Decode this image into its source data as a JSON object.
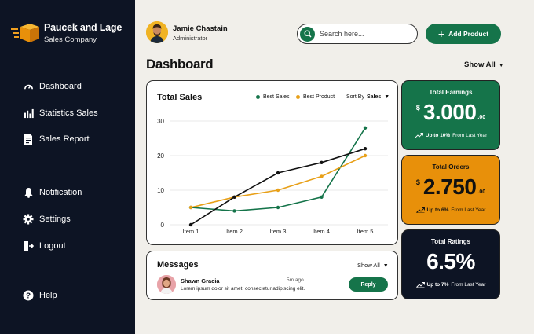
{
  "brand": {
    "name": "Paucek and Lage",
    "subtitle": "Sales Company"
  },
  "nav": {
    "dashboard": "Dashboard",
    "statistics": "Statistics Sales",
    "report": "Sales Report",
    "notification": "Notification",
    "settings": "Settings",
    "logout": "Logout",
    "help": "Help"
  },
  "user": {
    "name": "Jamie Chastain",
    "role": "Administrator"
  },
  "search": {
    "placeholder": "Search here..."
  },
  "add_button": "Add Product",
  "page_title": "Dashboard",
  "show_all": "Show All",
  "chart_card": {
    "title": "Total Sales",
    "sort_label": "Sort By",
    "sort_value": "Sales"
  },
  "chart_data": {
    "type": "line",
    "categories": [
      "Item 1",
      "Item 2",
      "Item 3",
      "Item 4",
      "Item 5"
    ],
    "ylim": [
      0,
      30
    ],
    "yticks": [
      0,
      10,
      20,
      30
    ],
    "grid": true,
    "legend_position": "top-right",
    "series": [
      {
        "name": "Best Sales",
        "color": "#15744a",
        "values": [
          5,
          4,
          5,
          8,
          28
        ]
      },
      {
        "name": "Best Product",
        "color": "#e8a018",
        "values": [
          5,
          8,
          10,
          14,
          20
        ]
      },
      {
        "name": "",
        "color": "#111111",
        "values": [
          0,
          8,
          15,
          18,
          22
        ]
      }
    ]
  },
  "messages": {
    "title": "Messages",
    "show_all": "Show All",
    "item": {
      "name": "Shawn Gracia",
      "time": "5m ago",
      "text": "Lorem ipsum dolor sit amet, consectetur adipiscing elit.",
      "reply": "Reply"
    }
  },
  "stats": {
    "earnings": {
      "label": "Total Earnings",
      "currency": "$",
      "value": "3.000",
      "cents": ".00",
      "change": "Up to 10%",
      "suffix": "From Last Year"
    },
    "orders": {
      "label": "Total Orders",
      "currency": "$",
      "value": "2.750",
      "cents": ".00",
      "change": "Up to 6%",
      "suffix": "From Last Year"
    },
    "ratings": {
      "label": "Total Ratings",
      "value": "6.5%",
      "change": "Up to 7%",
      "suffix": "From Last Year"
    }
  },
  "colors": {
    "sidebar": "#0d1424",
    "accent": "#15744a",
    "orange": "#e8900a",
    "background": "#f1efea"
  }
}
